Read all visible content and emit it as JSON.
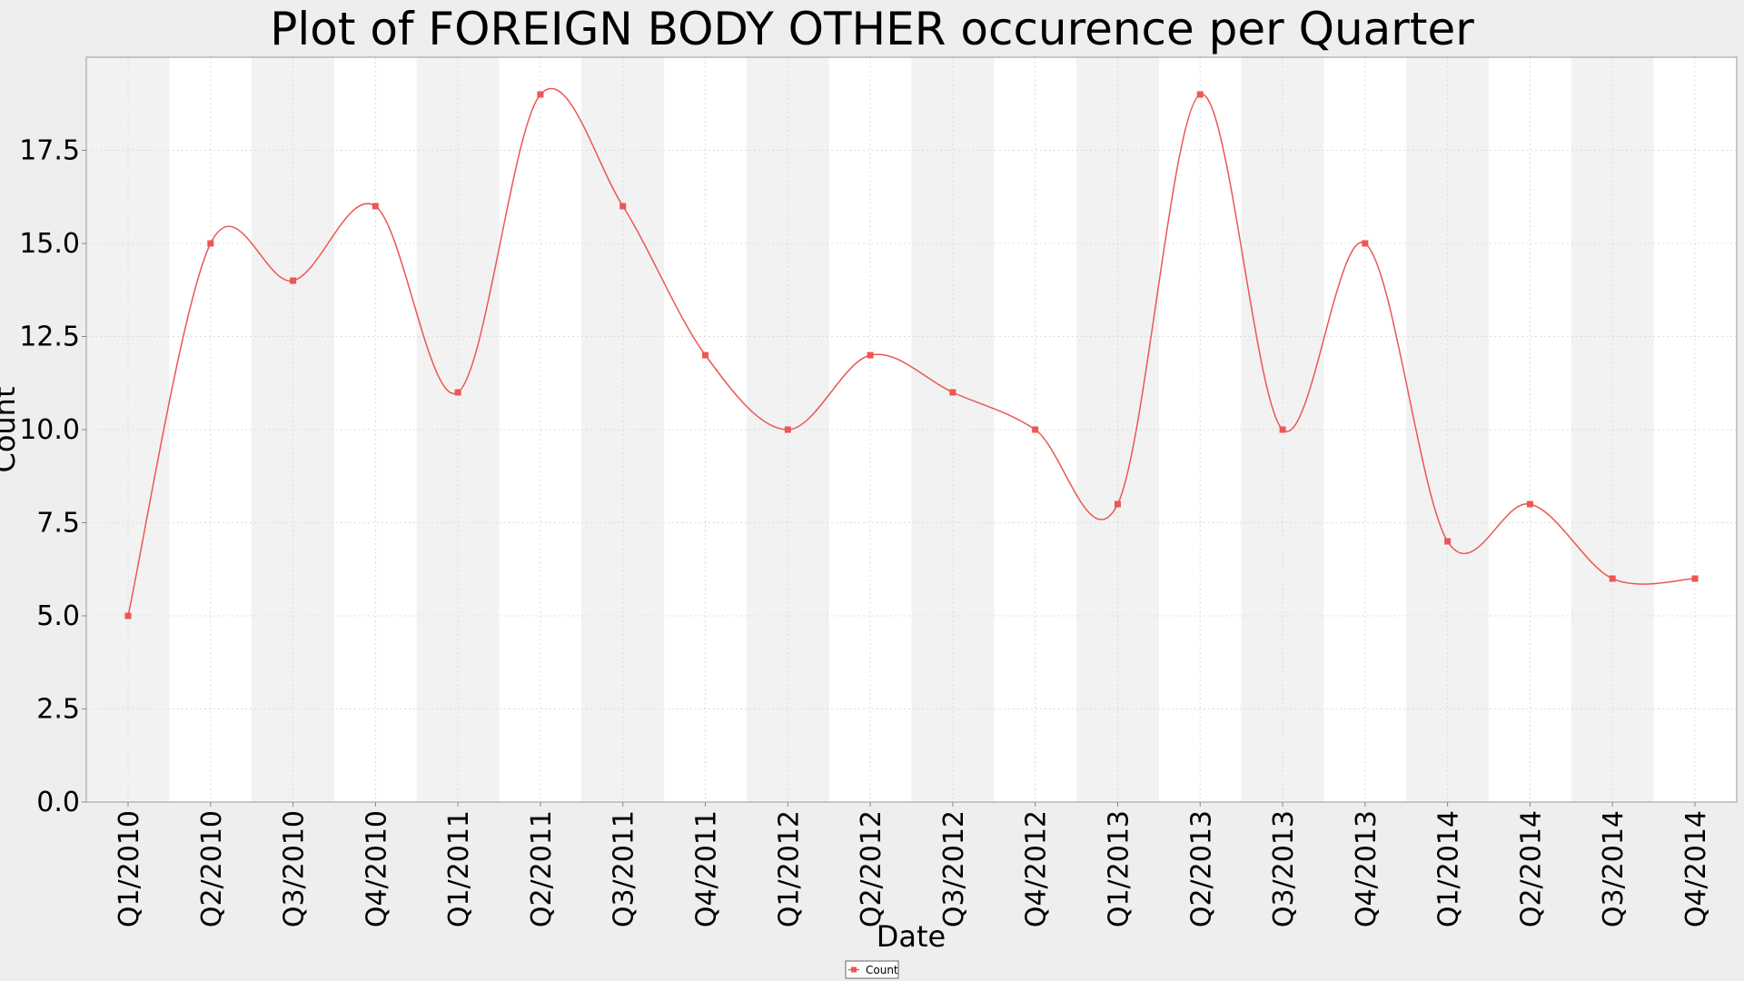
{
  "chart_data": {
    "type": "line",
    "title": "Plot of FOREIGN BODY OTHER occurence per Quarter",
    "xlabel": "Date",
    "ylabel": "Count",
    "ylim": [
      0,
      20
    ],
    "yticks": [
      "0.0",
      "2.5",
      "5.0",
      "7.5",
      "10.0",
      "12.5",
      "15.0",
      "17.5"
    ],
    "ytick_values": [
      0,
      2.5,
      5,
      7.5,
      10,
      12.5,
      15,
      17.5
    ],
    "grid": true,
    "legend_position": "bottom-center",
    "categories": [
      "Q1/2010",
      "Q2/2010",
      "Q3/2010",
      "Q4/2010",
      "Q1/2011",
      "Q2/2011",
      "Q3/2011",
      "Q4/2011",
      "Q1/2012",
      "Q2/2012",
      "Q3/2012",
      "Q4/2012",
      "Q1/2013",
      "Q2/2013",
      "Q3/2013",
      "Q4/2013",
      "Q1/2014",
      "Q2/2014",
      "Q3/2014",
      "Q4/2014"
    ],
    "series": [
      {
        "name": "Count",
        "color": "#ec5656",
        "values": [
          5,
          15,
          14,
          16,
          11,
          19,
          16,
          12,
          10,
          12,
          11,
          10,
          8,
          19,
          10,
          15,
          7,
          8,
          6,
          6
        ]
      }
    ]
  },
  "colors": {
    "page_background": "#eeeeee",
    "plot_band_dark": "#f2f2f2",
    "plot_band_light": "#ffffff",
    "grid": "#dcdcdc",
    "line": "#ec5656"
  },
  "legend": {
    "label": "Count"
  }
}
